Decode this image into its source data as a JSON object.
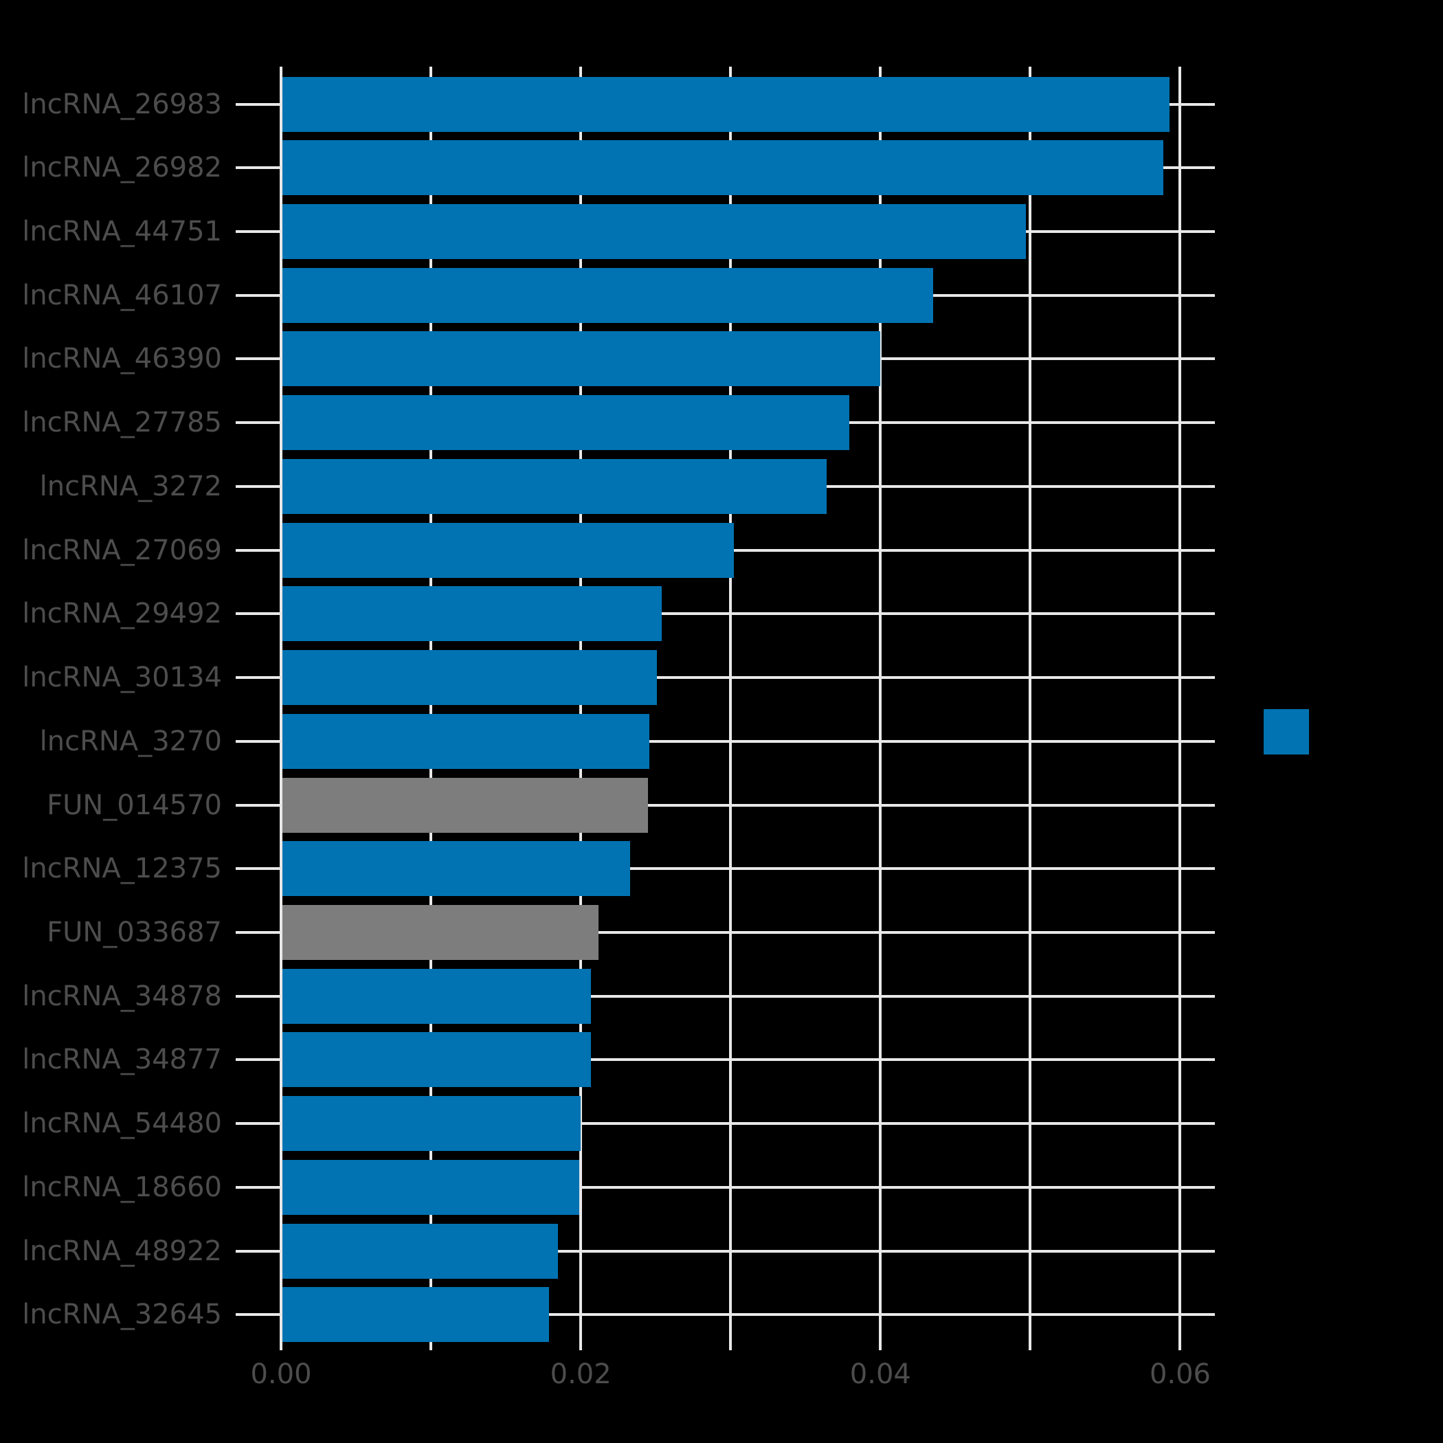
{
  "figure": {
    "background": "#000000"
  },
  "colors": {
    "bar_blue": "#0173b2",
    "bar_gray": "#7d7d7d",
    "grid": "#e8e8e8",
    "text": "#4d4d4d",
    "background": "#000000"
  },
  "chart_data": {
    "type": "bar",
    "orientation": "horizontal",
    "title": "",
    "xlabel": "",
    "ylabel": "",
    "grid": true,
    "xlim": [
      0,
      0.0623
    ],
    "categories": [
      "lncRNA_26983",
      "lncRNA_26982",
      "lncRNA_44751",
      "lncRNA_46107",
      "lncRNA_46390",
      "lncRNA_27785",
      "lncRNA_3272",
      "lncRNA_27069",
      "lncRNA_29492",
      "lncRNA_30134",
      "lncRNA_3270",
      "FUN_014570",
      "lncRNA_12375",
      "FUN_033687",
      "lncRNA_34878",
      "lncRNA_34877",
      "lncRNA_54480",
      "lncRNA_18660",
      "lncRNA_48922",
      "lncRNA_32645"
    ],
    "values": [
      0.0593,
      0.0589,
      0.0497,
      0.0435,
      0.04,
      0.0379,
      0.0364,
      0.0302,
      0.0254,
      0.0251,
      0.0246,
      0.0245,
      0.0233,
      0.0212,
      0.0207,
      0.0207,
      0.02,
      0.0199,
      0.0185,
      0.0179
    ],
    "bar_color_keys": [
      "bar_blue",
      "bar_blue",
      "bar_blue",
      "bar_blue",
      "bar_blue",
      "bar_blue",
      "bar_blue",
      "bar_blue",
      "bar_blue",
      "bar_blue",
      "bar_blue",
      "bar_gray",
      "bar_blue",
      "bar_gray",
      "bar_blue",
      "bar_blue",
      "bar_blue",
      "bar_blue",
      "bar_blue",
      "bar_blue"
    ],
    "x_ticks": [
      {
        "value": 0.0,
        "label": "0.00"
      },
      {
        "value": 0.01,
        "label": ""
      },
      {
        "value": 0.02,
        "label": "0.02"
      },
      {
        "value": 0.03,
        "label": ""
      },
      {
        "value": 0.04,
        "label": "0.04"
      },
      {
        "value": 0.05,
        "label": ""
      },
      {
        "value": 0.06,
        "label": "0.06"
      }
    ],
    "legend": {
      "position": "right",
      "entries": [
        {
          "label": "",
          "color_key": "bar_blue"
        }
      ]
    }
  }
}
